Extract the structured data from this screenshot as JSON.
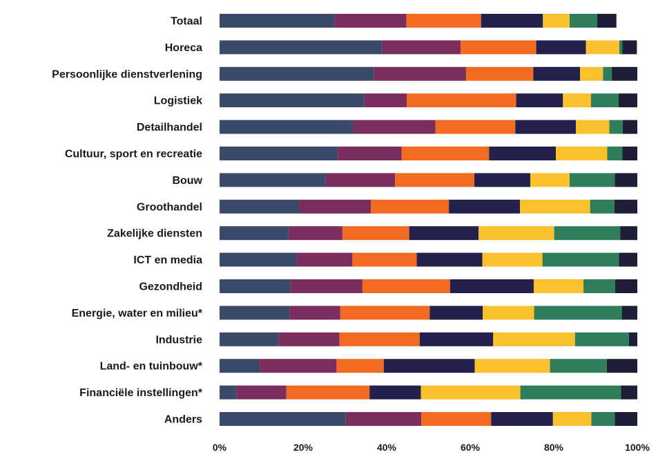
{
  "chart_data": {
    "type": "bar",
    "orientation": "horizontal",
    "stacked": true,
    "percent": true,
    "categories": [
      "Totaal",
      "Horeca",
      "Persoonlijke dienstverlening",
      "Logistiek",
      "Detailhandel",
      "Cultuur, sport en recreatie",
      "Bouw",
      "Groothandel",
      "Zakelijke diensten",
      "ICT en media",
      "Gezondheid",
      "Energie, water en milieu*",
      "Industrie",
      "Land- en tuinbouw*",
      "Financiële instellingen*",
      "Anders"
    ],
    "colors": [
      "#3b4a6b",
      "#7b2d5e",
      "#f26b21",
      "#23204d",
      "#fbc02d",
      "#2e7d5b",
      "#1e1e38"
    ],
    "series": [
      {
        "values": [
          27.5,
          38.9,
          36.9,
          34.6,
          31.9,
          28.3,
          25.4,
          19.1,
          16.5,
          18.5,
          17.0,
          16.8,
          14.1,
          9.6,
          4.0,
          30.2
        ]
      },
      {
        "values": [
          17.2,
          18.8,
          22.1,
          10.2,
          19.8,
          15.3,
          16.6,
          17.1,
          12.9,
          13.3,
          17.2,
          12.1,
          14.6,
          18.4,
          12.0,
          18.1
        ]
      },
      {
        "values": [
          17.9,
          18.1,
          16.1,
          26.2,
          19.1,
          20.9,
          19.0,
          18.7,
          16.0,
          15.4,
          21.0,
          21.4,
          19.2,
          11.3,
          19.9,
          16.7
        ]
      },
      {
        "values": [
          14.8,
          11.9,
          11.2,
          11.2,
          14.5,
          16.0,
          13.4,
          17.0,
          16.6,
          15.7,
          20.0,
          12.7,
          17.6,
          21.8,
          12.3,
          14.8
        ]
      },
      {
        "values": [
          6.4,
          8.0,
          5.5,
          6.7,
          8.0,
          12.3,
          9.4,
          16.8,
          18.1,
          14.4,
          11.9,
          12.3,
          19.6,
          18.0,
          23.8,
          9.2
        ]
      },
      {
        "values": [
          6.6,
          0.7,
          2.1,
          6.6,
          3.2,
          3.6,
          10.8,
          5.8,
          15.8,
          18.3,
          7.6,
          21.0,
          12.9,
          13.6,
          24.1,
          5.6
        ]
      },
      {
        "values": [
          4.6,
          3.5,
          6.1,
          4.5,
          3.5,
          3.6,
          5.4,
          5.5,
          4.1,
          4.4,
          5.3,
          3.7,
          2.0,
          7.3,
          3.9,
          5.4
        ]
      }
    ],
    "xlim": [
      0,
      100
    ],
    "xticks": [
      "0%",
      "20%",
      "40%",
      "60%",
      "80%",
      "100%"
    ],
    "title": "",
    "xlabel": "",
    "ylabel": "",
    "grid": false,
    "legend": "none"
  }
}
